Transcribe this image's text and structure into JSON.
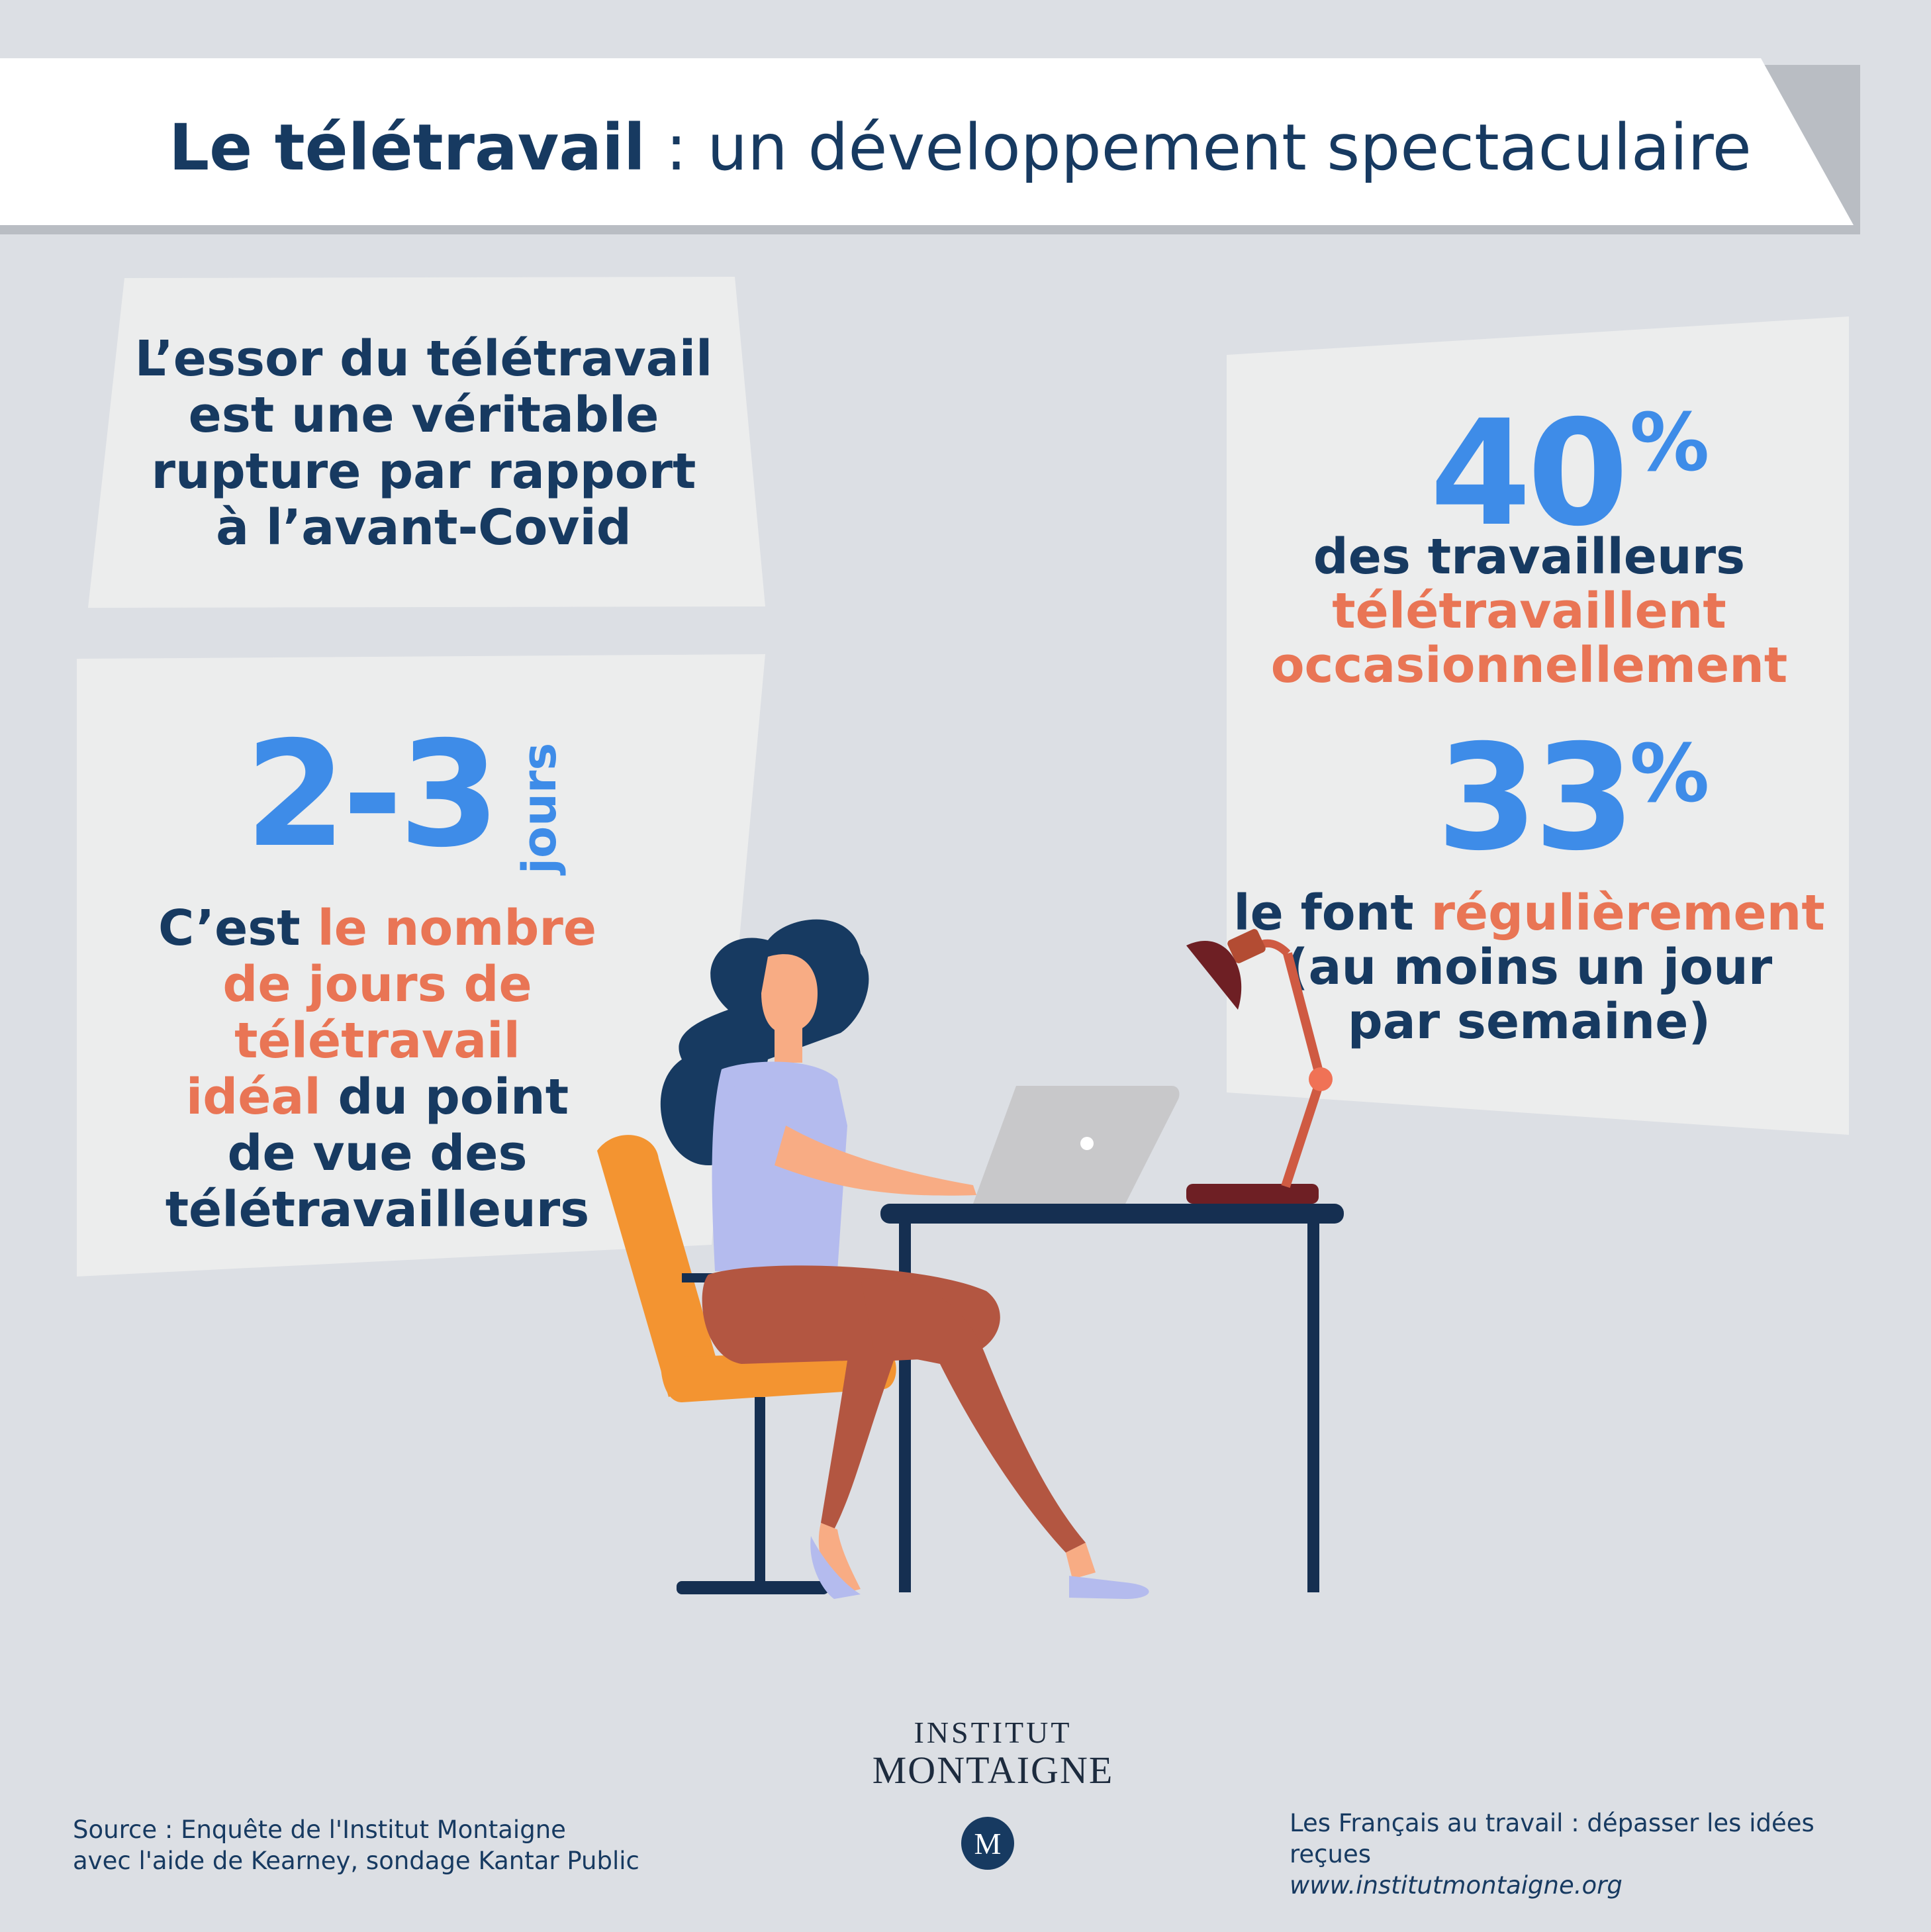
{
  "title": {
    "bold": "Le télétravail",
    "separator": " : ",
    "rest": "un développement spectaculaire"
  },
  "essor": {
    "lines": [
      "L’essor du télétravail",
      "est une véritable",
      "rupture par rapport",
      "à l’avant-Covid"
    ]
  },
  "days": {
    "value": "2-3",
    "unit": "jours",
    "desc_start": "C’est ",
    "desc_highlight_1": "le nombre",
    "desc_highlight_2": "de jours de télétravail",
    "desc_highlight_3": "idéal",
    "desc_mid": " du point",
    "desc_line4": "de vue des",
    "desc_line5": "télétravailleurs"
  },
  "stat1": {
    "value": "40",
    "unit": "%",
    "line1": "des travailleurs",
    "line2": "télétravaillent",
    "line3": "occasionnellement"
  },
  "stat2": {
    "value": "33",
    "unit": "%",
    "line1_start": "le font ",
    "line1_highlight": "régulièrement",
    "line2": "(au moins un jour",
    "line3": "par semaine)"
  },
  "logo": {
    "line1": "INSTITUT",
    "line2": "MONTAIGNE",
    "monogram": "M"
  },
  "source": {
    "line1": "Source : Enquête de l'Institut Montaigne",
    "line2": "avec l'aide de Kearney, sondage Kantar Public"
  },
  "publication": {
    "title": "Les Français au travail : dépasser les idées reçues",
    "url": "www.institutmontaigne.org"
  },
  "colors": {
    "background": "#dcdfe4",
    "navy": "#173a61",
    "blue": "#3e8ce8",
    "orange": "#e97555"
  }
}
